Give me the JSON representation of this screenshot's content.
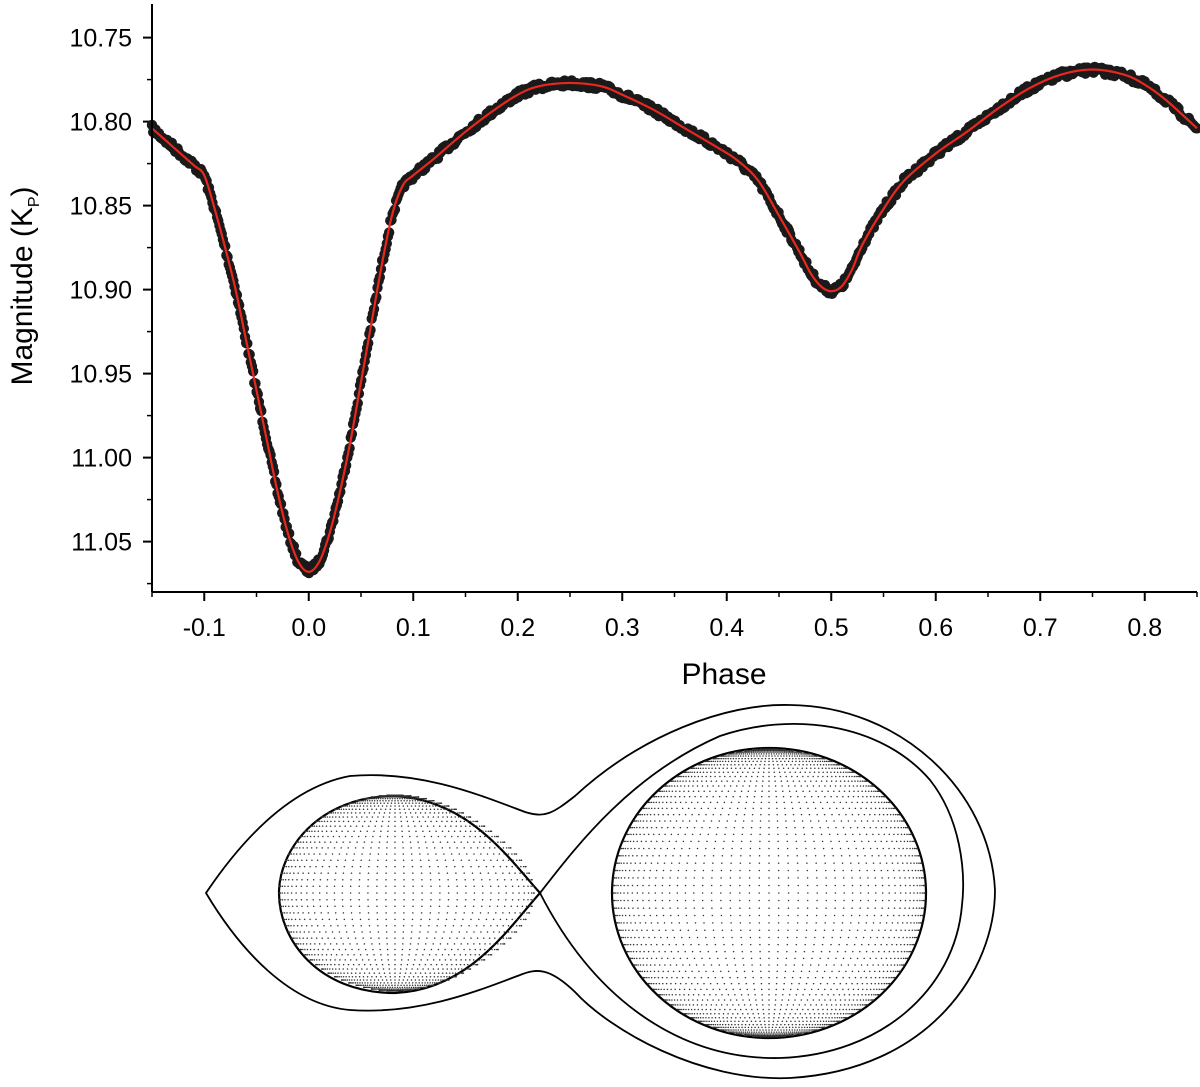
{
  "chart_data": {
    "type": "scatter",
    "xlabel": "Phase",
    "ylabel": "Magnitude (K",
    "ylabel_subscript": "P",
    "ylabel_close": ")",
    "xlim": [
      -0.15,
      0.85
    ],
    "ylim": [
      10.73,
      11.08
    ],
    "y_inverted": true,
    "grid": false,
    "x_ticks": [
      "-0.1",
      "0.0",
      "0.1",
      "0.2",
      "0.3",
      "0.4",
      "0.5",
      "0.6",
      "0.7",
      "0.8"
    ],
    "y_ticks": [
      "10.75",
      "10.80",
      "10.85",
      "10.90",
      "10.95",
      "11.00",
      "11.05"
    ],
    "series": [
      {
        "kind": "observed",
        "color": "#1a1a1a",
        "x": [
          -0.15,
          -0.13,
          -0.11,
          -0.1,
          -0.09,
          -0.08,
          -0.07,
          -0.06,
          -0.05,
          -0.04,
          -0.03,
          -0.02,
          -0.01,
          0.0,
          0.01,
          0.02,
          0.03,
          0.04,
          0.05,
          0.06,
          0.07,
          0.08,
          0.09,
          0.1,
          0.12,
          0.15,
          0.18,
          0.2,
          0.22,
          0.25,
          0.28,
          0.3,
          0.33,
          0.36,
          0.39,
          0.41,
          0.43,
          0.45,
          0.47,
          0.48,
          0.49,
          0.5,
          0.51,
          0.52,
          0.53,
          0.55,
          0.57,
          0.6,
          0.63,
          0.66,
          0.69,
          0.72,
          0.75,
          0.78,
          0.8,
          0.82,
          0.85
        ],
        "y": [
          10.804,
          10.815,
          10.826,
          10.832,
          10.852,
          10.875,
          10.9,
          10.93,
          10.96,
          10.99,
          11.02,
          11.045,
          11.062,
          11.068,
          11.062,
          11.045,
          11.02,
          10.99,
          10.955,
          10.92,
          10.885,
          10.855,
          10.838,
          10.832,
          10.822,
          10.806,
          10.792,
          10.784,
          10.779,
          10.777,
          10.779,
          10.784,
          10.793,
          10.804,
          10.815,
          10.823,
          10.835,
          10.856,
          10.878,
          10.89,
          10.898,
          10.901,
          10.898,
          10.888,
          10.873,
          10.852,
          10.835,
          10.819,
          10.806,
          10.792,
          10.78,
          10.772,
          10.769,
          10.772,
          10.778,
          10.787,
          10.804
        ]
      },
      {
        "kind": "model",
        "color": "#e8281e",
        "x": [
          -0.15,
          -0.13,
          -0.11,
          -0.1,
          -0.09,
          -0.08,
          -0.07,
          -0.06,
          -0.05,
          -0.04,
          -0.03,
          -0.02,
          -0.01,
          0.0,
          0.01,
          0.02,
          0.03,
          0.04,
          0.05,
          0.06,
          0.07,
          0.08,
          0.09,
          0.1,
          0.12,
          0.15,
          0.18,
          0.2,
          0.22,
          0.25,
          0.28,
          0.3,
          0.33,
          0.36,
          0.39,
          0.41,
          0.43,
          0.45,
          0.47,
          0.48,
          0.49,
          0.5,
          0.51,
          0.52,
          0.53,
          0.55,
          0.57,
          0.6,
          0.63,
          0.66,
          0.69,
          0.72,
          0.75,
          0.78,
          0.8,
          0.82,
          0.85
        ],
        "y": [
          10.804,
          10.815,
          10.826,
          10.832,
          10.852,
          10.875,
          10.9,
          10.93,
          10.96,
          10.99,
          11.02,
          11.045,
          11.062,
          11.068,
          11.062,
          11.045,
          11.02,
          10.99,
          10.955,
          10.92,
          10.885,
          10.855,
          10.838,
          10.832,
          10.822,
          10.806,
          10.792,
          10.784,
          10.779,
          10.777,
          10.779,
          10.784,
          10.793,
          10.804,
          10.815,
          10.823,
          10.835,
          10.856,
          10.878,
          10.89,
          10.898,
          10.901,
          10.898,
          10.888,
          10.873,
          10.852,
          10.835,
          10.819,
          10.806,
          10.792,
          10.78,
          10.772,
          10.769,
          10.772,
          10.778,
          10.787,
          10.804
        ]
      }
    ]
  },
  "roche_diagram": {
    "line_color": "#000000",
    "dot_color": "#333333"
  }
}
